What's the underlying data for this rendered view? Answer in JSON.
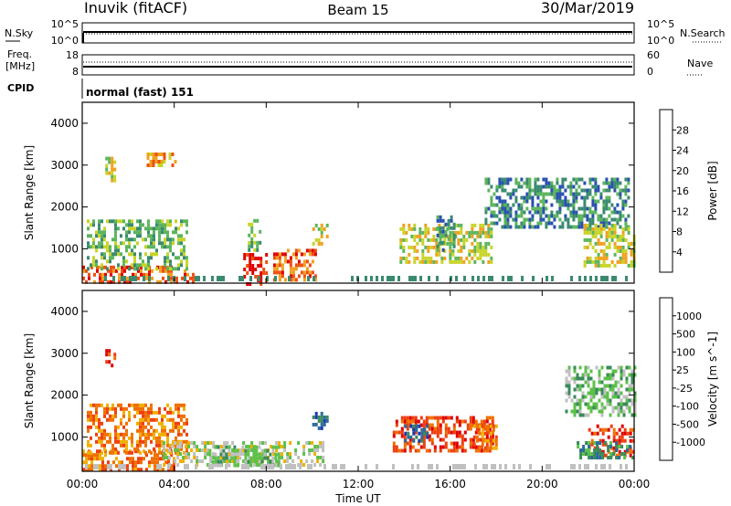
{
  "header": {
    "title": "Inuvik (fitACF)",
    "beam": "Beam 15",
    "date": "30/Mar/2019"
  },
  "panels": {
    "nsky_label": "N.Sky",
    "nsearch_label": "N.Search",
    "nsky_ticks": [
      "10^5",
      "10^0"
    ],
    "nsearch_ticks": [
      "10^5",
      "10^0"
    ],
    "freq_label": "Freq.",
    "freq_unit": "[MHz]",
    "freq_ticks": [
      "18",
      "8"
    ],
    "nave_label": "Nave",
    "nave_ticks": [
      "60",
      "0"
    ],
    "cpid_label": "CPID",
    "cpid_value": "normal (fast) 151"
  },
  "chart_data": [
    {
      "type": "heatmap",
      "title": "",
      "xlabel": "",
      "ylabel": "Slant Range [km]",
      "x_ticks": [
        "00:00",
        "04:00",
        "08:00",
        "12:00",
        "16:00",
        "20:00",
        "00:00"
      ],
      "y_ticks": [
        "1000",
        "2000",
        "3000",
        "4000"
      ],
      "ylim": [
        180,
        4500
      ],
      "colorbar": {
        "label": "Power [dB]",
        "ticks": [
          "4",
          "8",
          "12",
          "16",
          "20",
          "24",
          "28"
        ],
        "colors": [
          "#0000ee",
          "#2a50b0",
          "#3a8a70",
          "#5cb55c",
          "#c8d428",
          "#f0a020",
          "#ee5010",
          "#e00000"
        ]
      },
      "echo_regions": [
        {
          "t0": 0.0,
          "t1": 4.8,
          "r0": 200,
          "r1": 600,
          "level": 6
        },
        {
          "t0": 0.2,
          "t1": 4.5,
          "r0": 550,
          "r1": 1700,
          "level": 3
        },
        {
          "t0": 1.0,
          "t1": 1.4,
          "r0": 2600,
          "r1": 3200,
          "level": 4
        },
        {
          "t0": 2.8,
          "t1": 4.2,
          "r0": 3000,
          "r1": 3300,
          "level": 5
        },
        {
          "t0": 7.0,
          "t1": 8.0,
          "r0": 200,
          "r1": 900,
          "level": 7
        },
        {
          "t0": 7.2,
          "t1": 7.7,
          "r0": 1000,
          "r1": 1800,
          "level": 3
        },
        {
          "t0": 8.3,
          "t1": 10.2,
          "r0": 250,
          "r1": 1000,
          "level": 6
        },
        {
          "t0": 10.0,
          "t1": 10.6,
          "r0": 1100,
          "r1": 1600,
          "level": 4
        },
        {
          "t0": 13.8,
          "t1": 17.8,
          "r0": 700,
          "r1": 1600,
          "level": 4
        },
        {
          "t0": 15.4,
          "t1": 16.2,
          "r0": 1000,
          "r1": 1800,
          "level": 2
        },
        {
          "t0": 17.5,
          "t1": 23.8,
          "r0": 1500,
          "r1": 2700,
          "level": 2
        },
        {
          "t0": 21.8,
          "t1": 24.0,
          "r0": 600,
          "r1": 1600,
          "level": 4
        }
      ]
    },
    {
      "type": "heatmap",
      "title": "",
      "xlabel": "Time UT",
      "ylabel": "Slant Range [km]",
      "x_ticks": [
        "00:00",
        "04:00",
        "08:00",
        "12:00",
        "16:00",
        "20:00",
        "00:00"
      ],
      "y_ticks": [
        "1000",
        "2000",
        "3000",
        "4000"
      ],
      "ylim": [
        180,
        4500
      ],
      "colorbar": {
        "label": "Velocity [m s^-1]",
        "ticks": [
          "1000",
          "500",
          "100",
          "25",
          "-25",
          "-100",
          "-500",
          "-1000"
        ],
        "colors": [
          "#1a3ab0",
          "#2a6a9a",
          "#3a8a5a",
          "#5cc04a",
          "#c0c0c0",
          "#f0b000",
          "#f07000",
          "#ee4010",
          "#e00000"
        ]
      },
      "echo_regions": [
        {
          "t0": 0.0,
          "t1": 4.0,
          "r0": 200,
          "r1": 700,
          "level": 6
        },
        {
          "t0": 0.2,
          "t1": 4.6,
          "r0": 600,
          "r1": 1800,
          "level": 6
        },
        {
          "t0": 1.0,
          "t1": 1.4,
          "r0": 2700,
          "r1": 3100,
          "level": 7
        },
        {
          "t0": 3.5,
          "t1": 10.5,
          "r0": 300,
          "r1": 900,
          "level": 4
        },
        {
          "t0": 5.5,
          "t1": 8.5,
          "r0": 300,
          "r1": 800,
          "level": 3
        },
        {
          "t0": 10.0,
          "t1": 10.6,
          "r0": 1200,
          "r1": 1600,
          "level": 1
        },
        {
          "t0": 13.5,
          "t1": 17.8,
          "r0": 700,
          "r1": 1500,
          "level": 7
        },
        {
          "t0": 14.0,
          "t1": 15.0,
          "r0": 900,
          "r1": 1300,
          "level": 1
        },
        {
          "t0": 17.0,
          "t1": 18.0,
          "r0": 700,
          "r1": 1300,
          "level": 6
        },
        {
          "t0": 21.0,
          "t1": 24.0,
          "r0": 1500,
          "r1": 2700,
          "level": 3
        },
        {
          "t0": 22.0,
          "t1": 24.0,
          "r0": 600,
          "r1": 1300,
          "level": 7
        },
        {
          "t0": 21.5,
          "t1": 24.0,
          "r0": 500,
          "r1": 900,
          "level": 2
        }
      ]
    }
  ]
}
